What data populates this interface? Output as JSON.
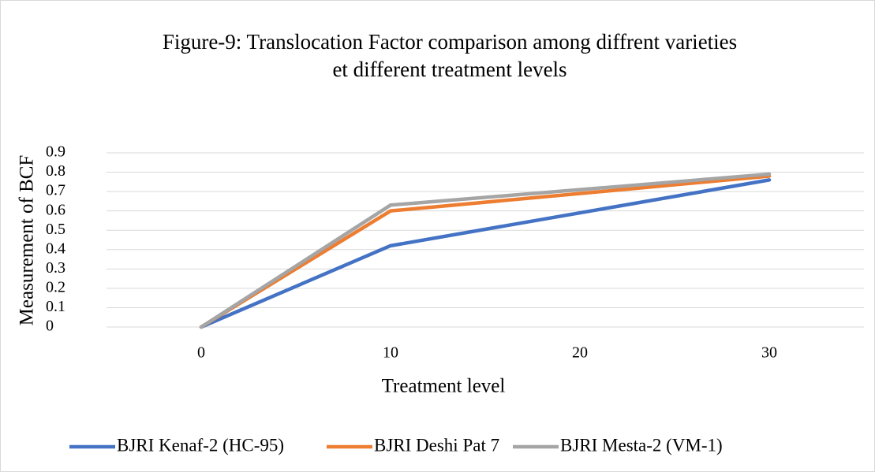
{
  "chart_data": {
    "type": "line",
    "title": [
      "Figure-9: Translocation Factor comparison  among diffrent varieties",
      "et different treatment levels"
    ],
    "x_label": "Treatment level",
    "y_label": "Measurement of  BCF",
    "x": [
      0,
      10,
      30
    ],
    "series": [
      {
        "name": "BJRI Kenaf-2 (HC-95)",
        "color": "#4472c4",
        "values": [
          0,
          0.42,
          0.76
        ]
      },
      {
        "name": "BJRI Deshi Pat 7",
        "color": "#ed7d31",
        "values": [
          0,
          0.6,
          0.78
        ]
      },
      {
        "name": "BJRI Mesta-2 (VM-1)",
        "color": "#a5a5a5",
        "values": [
          0,
          0.63,
          0.79
        ]
      }
    ],
    "xlim": [
      -5,
      35
    ],
    "xticks": [
      0,
      10,
      20,
      30
    ],
    "ylim": [
      0,
      0.9
    ],
    "yticks": [
      0,
      0.1,
      0.2,
      0.3,
      0.4,
      0.5,
      0.6,
      0.7,
      0.8,
      0.9
    ],
    "grid": true,
    "legend": "bottom"
  }
}
